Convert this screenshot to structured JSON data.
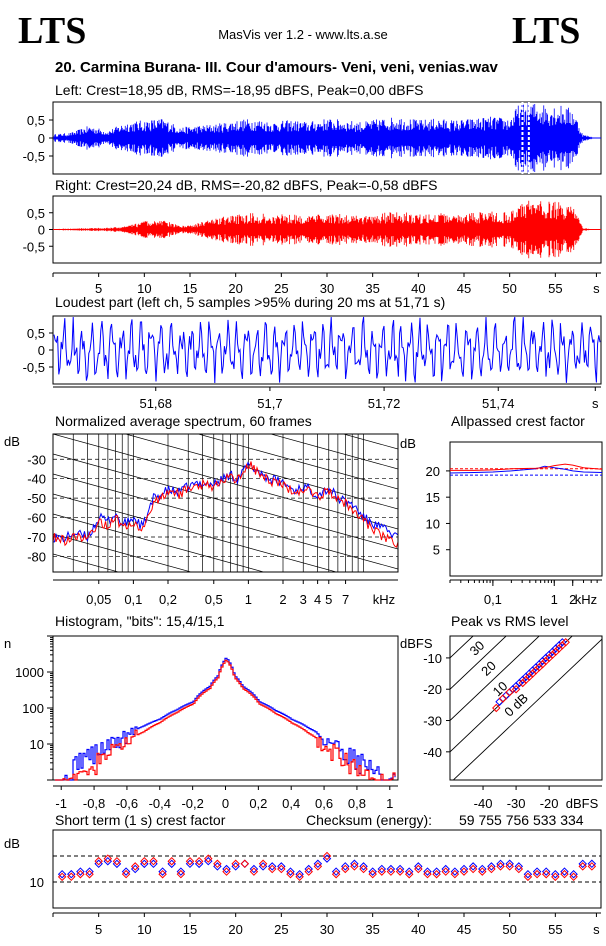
{
  "header": {
    "logo_left": "LTS",
    "logo_right": "LTS",
    "app_title": "MasVis ver 1.2 - www.lts.a.se",
    "track_title": "20. Carmina Burana- III. Cour d'amours- Veni, veni, venias.wav"
  },
  "colors": {
    "left": "#0000ff",
    "right": "#ff0000",
    "grid": "#000000"
  },
  "chart_data": [
    {
      "id": "left_waveform",
      "type": "area",
      "title": "Left: Crest=18,95 dB, RMS=-18,95 dBFS, Peak=0,00 dBFS",
      "ytick_labels": [
        "0,5",
        "0",
        "-0,5"
      ],
      "yticks": [
        0.5,
        0,
        -0.5
      ],
      "ylim": [
        -1,
        1
      ],
      "xlim": [
        0,
        60
      ],
      "marker_x": [
        51.4,
        52.1
      ],
      "envelope": {
        "time_s": [
          0,
          2,
          4,
          6,
          8,
          10,
          12,
          14,
          16,
          18,
          20,
          22,
          24,
          26,
          28,
          30,
          32,
          34,
          36,
          38,
          40,
          42,
          44,
          46,
          48,
          50,
          51,
          52,
          53,
          54,
          55,
          56,
          57,
          58,
          59.5
        ],
        "peak": [
          0.1,
          0.15,
          0.35,
          0.2,
          0.45,
          0.5,
          0.55,
          0.3,
          0.35,
          0.4,
          0.5,
          0.55,
          0.45,
          0.5,
          0.45,
          0.55,
          0.5,
          0.45,
          0.55,
          0.6,
          0.5,
          0.55,
          0.5,
          0.55,
          0.6,
          0.55,
          0.95,
          1.0,
          1.0,
          0.95,
          0.95,
          0.9,
          0.8,
          0.1,
          0.0
        ]
      }
    },
    {
      "id": "right_waveform",
      "type": "area",
      "title": "Right: Crest=20,24 dB, RMS=-20,82 dBFS, Peak=-0,58 dBFS",
      "ytick_labels": [
        "0,5",
        "0",
        "-0,5"
      ],
      "yticks": [
        0.5,
        0,
        -0.5
      ],
      "ylim": [
        -1,
        1
      ],
      "xlim": [
        0,
        60
      ],
      "xtick_labels": [
        "5",
        "10",
        "15",
        "20",
        "25",
        "30",
        "35",
        "40",
        "45",
        "50",
        "55",
        "s"
      ],
      "xticks": [
        5,
        10,
        15,
        20,
        25,
        30,
        35,
        40,
        45,
        50,
        55,
        59.5
      ],
      "envelope": {
        "time_s": [
          0,
          2,
          4,
          6,
          8,
          10,
          12,
          14,
          16,
          18,
          20,
          22,
          24,
          26,
          28,
          30,
          32,
          34,
          36,
          38,
          40,
          42,
          44,
          46,
          48,
          50,
          51,
          52,
          53,
          54,
          55,
          56,
          57,
          58,
          59.5
        ],
        "peak": [
          0.02,
          0.03,
          0.05,
          0.05,
          0.1,
          0.25,
          0.3,
          0.1,
          0.2,
          0.35,
          0.45,
          0.5,
          0.45,
          0.5,
          0.4,
          0.5,
          0.45,
          0.4,
          0.5,
          0.55,
          0.45,
          0.5,
          0.45,
          0.5,
          0.55,
          0.5,
          0.85,
          0.9,
          0.9,
          0.85,
          0.85,
          0.8,
          0.7,
          0.05,
          0.0
        ]
      }
    },
    {
      "id": "loudest_part",
      "type": "line",
      "title": "Loudest part (left  ch, 5 samples >95% during 20 ms at 51,71 s)",
      "ytick_labels": [
        "0,5",
        "0",
        "-0,5"
      ],
      "yticks": [
        0.5,
        0,
        -0.5
      ],
      "ylim": [
        -1,
        1
      ],
      "xlim": [
        51.662,
        51.758
      ],
      "xtick_labels": [
        "51,68",
        "51,7",
        "51,72",
        "51,74",
        "s"
      ],
      "xticks": [
        51.68,
        51.7,
        51.72,
        51.74,
        51.757
      ],
      "series": [
        {
          "color": "#0000ff"
        }
      ]
    },
    {
      "id": "spectrum",
      "type": "line",
      "title": "Normalized average spectrum, 60 frames",
      "ylabel": "dB",
      "ytick_labels": [
        "-30",
        "-40",
        "-50",
        "-60",
        "-70",
        "-80"
      ],
      "yticks": [
        -30,
        -40,
        -50,
        -60,
        -70,
        -80
      ],
      "ylim": [
        -88,
        -17
      ],
      "xlabel": "kHz",
      "xtick_labels": [
        "0,05",
        "0,1",
        "0,2",
        "0,5",
        "1",
        "2",
        "3",
        "4",
        "5",
        "7"
      ],
      "xticks": [
        0.05,
        0.1,
        0.2,
        0.5,
        1,
        2,
        3,
        4,
        5,
        7
      ],
      "xlim": [
        0.02,
        20
      ],
      "freq_khz": [
        0.02,
        0.025,
        0.03,
        0.04,
        0.05,
        0.06,
        0.07,
        0.08,
        0.1,
        0.12,
        0.15,
        0.2,
        0.25,
        0.3,
        0.4,
        0.5,
        0.6,
        0.7,
        0.8,
        1,
        1.2,
        1.5,
        2,
        2.5,
        3,
        4,
        5,
        6,
        7,
        8,
        10,
        12,
        15,
        20
      ],
      "series": [
        {
          "name": "Left",
          "color": "#0000ff",
          "values": [
            -70,
            -71,
            -68,
            -70,
            -60,
            -62,
            -58,
            -64,
            -60,
            -65,
            -50,
            -46,
            -47,
            -44,
            -42,
            -43,
            -40,
            -38,
            -40,
            -33,
            -36,
            -40,
            -42,
            -46,
            -44,
            -48,
            -45,
            -50,
            -52,
            -53,
            -60,
            -63,
            -66,
            -70
          ]
        },
        {
          "name": "Right",
          "color": "#ff0000",
          "values": [
            -70,
            -72,
            -69,
            -71,
            -62,
            -64,
            -59,
            -66,
            -62,
            -67,
            -52,
            -47,
            -48,
            -45,
            -43,
            -44,
            -41,
            -39,
            -41,
            -32,
            -37,
            -41,
            -43,
            -47,
            -45,
            -49,
            -46,
            -51,
            -53,
            -55,
            -62,
            -66,
            -70,
            -74
          ]
        }
      ]
    },
    {
      "id": "allpassed_crest",
      "type": "line",
      "title": "Allpassed crest factor",
      "ylabel": "dB",
      "ytick_labels": [
        "20",
        "15",
        "10",
        "5"
      ],
      "yticks": [
        20,
        15,
        10,
        5
      ],
      "ylim": [
        0,
        25.5
      ],
      "xlabel": "kHz",
      "xtick_labels": [
        "0,1",
        "1",
        "2"
      ],
      "xticks": [
        0.1,
        1,
        2
      ],
      "xlim": [
        0.02,
        6
      ],
      "freq_khz": [
        0.02,
        0.05,
        0.1,
        0.2,
        0.5,
        0.7,
        1,
        1.5,
        2,
        3,
        6
      ],
      "series": [
        {
          "name": "Left",
          "color": "#0000ff",
          "values": [
            19.6,
            19.7,
            19.8,
            20.0,
            20.4,
            20.9,
            20.6,
            20.3,
            20.0,
            19.8,
            19.7
          ]
        },
        {
          "name": "Right",
          "color": "#ff0000",
          "values": [
            20.1,
            20.1,
            20.2,
            20.4,
            20.5,
            20.6,
            21.0,
            21.3,
            21.1,
            20.6,
            20.3
          ]
        }
      ],
      "reference_left": 19.2,
      "reference_right": 20.4
    },
    {
      "id": "histogram",
      "type": "line",
      "title": "Histogram, \"bits\": 15,4/15,1",
      "ylabel": "n",
      "ytick_labels": [
        "1000",
        "100",
        "10"
      ],
      "yticks": [
        1000,
        100,
        10
      ],
      "ylim": [
        1,
        10000
      ],
      "xtick_labels": [
        "-1",
        "-0,8",
        "-0,6",
        "-0,4",
        "-0,2",
        "0",
        "0,2",
        "0,4",
        "0,6",
        "0,8",
        "1"
      ],
      "xticks": [
        -1,
        -0.8,
        -0.6,
        -0.4,
        -0.2,
        0,
        0.2,
        0.4,
        0.6,
        0.8,
        1
      ],
      "xlim": [
        -1.05,
        1.05
      ],
      "x": [
        -1.0,
        -0.95,
        -0.9,
        -0.8,
        -0.7,
        -0.6,
        -0.5,
        -0.4,
        -0.3,
        -0.2,
        -0.1,
        -0.05,
        0,
        0.05,
        0.1,
        0.2,
        0.3,
        0.4,
        0.5,
        0.6,
        0.7,
        0.8,
        0.9,
        0.95,
        1.0
      ],
      "series": [
        {
          "name": "Left",
          "color": "#0000ff",
          "values": [
            1,
            1,
            4,
            6,
            10,
            18,
            32,
            50,
            90,
            150,
            400,
            800,
            2500,
            800,
            400,
            150,
            85,
            48,
            28,
            14,
            7,
            4,
            2,
            1,
            1
          ]
        },
        {
          "name": "Right",
          "color": "#ff0000",
          "values": [
            1,
            1,
            1,
            3,
            6,
            12,
            22,
            40,
            75,
            130,
            350,
            700,
            2200,
            700,
            350,
            130,
            70,
            38,
            20,
            9,
            4,
            2,
            1,
            1,
            1
          ]
        }
      ]
    },
    {
      "id": "peak_vs_rms",
      "type": "scatter",
      "title": "Peak vs RMS level",
      "ylabel": "dBFS",
      "ytick_labels": [
        "-10",
        "-20",
        "-30",
        "-40"
      ],
      "yticks": [
        -10,
        -20,
        -30,
        -40
      ],
      "ylim": [
        -49,
        -3
      ],
      "xlabel": "dBFS",
      "xtick_labels": [
        "-40",
        "-30",
        "-20"
      ],
      "xticks": [
        -40,
        -30,
        -20
      ],
      "xlim": [
        -50,
        -4
      ],
      "diagonal_labels": [
        "40",
        "30",
        "20",
        "10",
        "0 dB"
      ],
      "diagonal_offsets_db": [
        40,
        30,
        20,
        10,
        0
      ],
      "series": [
        {
          "name": "Left",
          "color": "#0000ff",
          "x": [
            -35,
            -33,
            -31,
            -30,
            -29,
            -28,
            -27,
            -26,
            -25,
            -24,
            -23,
            -22,
            -21,
            -20,
            -19,
            -18,
            -17,
            -16
          ],
          "y": [
            -24,
            -22,
            -20,
            -19,
            -18,
            -17,
            -16,
            -15,
            -14,
            -13,
            -12,
            -11,
            -10,
            -9,
            -8,
            -7,
            -6,
            -5
          ]
        },
        {
          "name": "Right",
          "color": "#ff0000",
          "x": [
            -36,
            -34,
            -32,
            -30,
            -28,
            -27,
            -26,
            -25,
            -24,
            -23,
            -22,
            -21,
            -20,
            -19,
            -18,
            -17,
            -16,
            -15
          ],
          "y": [
            -26,
            -23,
            -21,
            -20,
            -18,
            -17,
            -16,
            -15,
            -14,
            -13,
            -12,
            -11,
            -10,
            -9,
            -8,
            -7,
            -6,
            -5
          ]
        }
      ]
    },
    {
      "id": "short_term_crest",
      "type": "scatter",
      "title": "Short term (1 s) crest factor",
      "checksum_label": "Checksum (energy):",
      "checksum_value": "59 755 756 533 334",
      "ylabel": "dB",
      "ytick_labels": [
        "10"
      ],
      "yticks": [
        10
      ],
      "ylim": [
        0,
        30
      ],
      "gridlines": [
        10,
        20
      ],
      "xtick_labels": [
        "5",
        "10",
        "15",
        "20",
        "25",
        "30",
        "35",
        "40",
        "45",
        "50",
        "55",
        "s"
      ],
      "xticks": [
        5,
        10,
        15,
        20,
        25,
        30,
        35,
        40,
        45,
        50,
        55,
        59.5
      ],
      "xlim": [
        0,
        60
      ],
      "series": [
        {
          "name": "Left",
          "color": "#0000ff",
          "x": [
            1,
            2,
            3,
            4,
            5,
            6,
            7,
            8,
            9,
            10,
            11,
            12,
            13,
            14,
            15,
            16,
            17,
            18,
            19,
            20,
            21,
            22,
            23,
            24,
            25,
            26,
            27,
            28,
            29,
            30,
            31,
            32,
            33,
            34,
            35,
            36,
            37,
            38,
            39,
            40,
            41,
            42,
            43,
            44,
            45,
            46,
            47,
            48,
            49,
            50,
            51,
            52,
            53,
            54,
            55,
            56,
            57,
            58,
            59
          ],
          "values": [
            13,
            13,
            14,
            14,
            17,
            18,
            17,
            14,
            15,
            17,
            17,
            14,
            17,
            14,
            17,
            17,
            18,
            16,
            15,
            16,
            17,
            15,
            16,
            16,
            16,
            14,
            13,
            15,
            17,
            19,
            14,
            16,
            17,
            16,
            14,
            15,
            15,
            15,
            14,
            16,
            14,
            14,
            15,
            14,
            15,
            16,
            15,
            16,
            17,
            17,
            16,
            13,
            14,
            14,
            13,
            14,
            13,
            17,
            17
          ]
        },
        {
          "name": "Right",
          "color": "#ff0000",
          "x": [
            1,
            2,
            3,
            4,
            5,
            6,
            7,
            8,
            9,
            10,
            11,
            12,
            13,
            14,
            15,
            16,
            17,
            18,
            19,
            20,
            21,
            22,
            23,
            24,
            25,
            26,
            27,
            28,
            29,
            30,
            31,
            32,
            33,
            34,
            35,
            36,
            37,
            38,
            39,
            40,
            41,
            42,
            43,
            44,
            45,
            46,
            47,
            48,
            49,
            50,
            51,
            52,
            53,
            54,
            55,
            56,
            57,
            58,
            59
          ],
          "values": [
            12,
            12,
            13,
            13,
            18,
            19,
            18,
            13,
            16,
            18,
            18,
            13,
            18,
            13,
            18,
            18,
            19,
            17,
            14,
            17,
            17,
            14,
            17,
            15,
            15,
            13,
            12,
            14,
            16,
            20,
            13,
            15,
            16,
            15,
            13,
            14,
            14,
            14,
            13,
            15,
            13,
            13,
            14,
            13,
            14,
            15,
            14,
            15,
            16,
            16,
            15,
            12,
            13,
            13,
            12,
            13,
            12,
            16,
            16
          ]
        }
      ]
    }
  ]
}
